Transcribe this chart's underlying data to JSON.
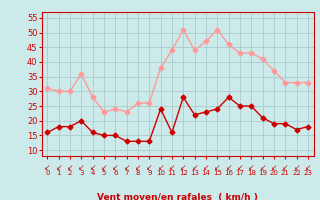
{
  "hours": [
    0,
    1,
    2,
    3,
    4,
    5,
    6,
    7,
    8,
    9,
    10,
    11,
    12,
    13,
    14,
    15,
    16,
    17,
    18,
    19,
    20,
    21,
    22,
    23
  ],
  "wind_avg": [
    16,
    18,
    18,
    20,
    16,
    15,
    15,
    13,
    13,
    13,
    24,
    16,
    28,
    22,
    23,
    24,
    28,
    25,
    25,
    21,
    19,
    19,
    17,
    18
  ],
  "wind_gust": [
    31,
    30,
    30,
    36,
    28,
    23,
    24,
    23,
    26,
    26,
    38,
    44,
    51,
    44,
    47,
    51,
    46,
    43,
    43,
    41,
    37,
    33,
    33,
    33
  ],
  "bg_color": "#cceaea",
  "grid_color": "#aacccc",
  "avg_line_color": "#cc0000",
  "gust_line_color": "#ff9999",
  "xlabel": "Vent moyen/en rafales  ( km/h )",
  "xlabel_color": "#cc0000",
  "tick_color": "#cc0000",
  "axis_color": "#cc0000",
  "ylim_min": 8,
  "ylim_max": 57,
  "yticks": [
    10,
    15,
    20,
    25,
    30,
    35,
    40,
    45,
    50,
    55
  ],
  "marker_size": 2.5,
  "linewidth": 1.0
}
